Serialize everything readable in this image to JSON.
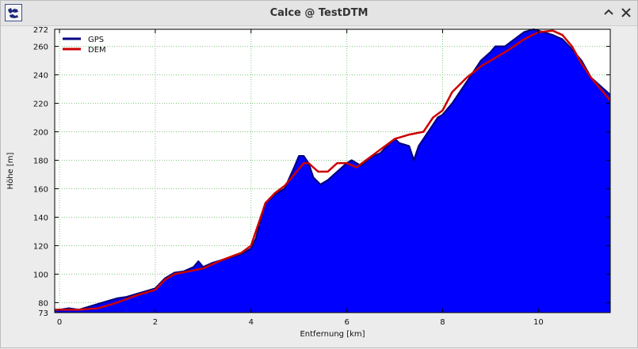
{
  "window": {
    "title": "Calce @ TestDTM",
    "icons": {
      "app": "map-icon",
      "minimize": "chevron-up-icon",
      "close": "close-icon"
    }
  },
  "chart_data": {
    "type": "area",
    "xlabel": "Entfernung [km]",
    "ylabel": "Höhe [m]",
    "xlim": [
      -0.1,
      11.5
    ],
    "ylim": [
      73,
      272
    ],
    "xticks": [
      0,
      2,
      4,
      6,
      8,
      10
    ],
    "yticks": [
      73,
      80,
      100,
      120,
      140,
      160,
      180,
      200,
      220,
      240,
      260,
      272
    ],
    "grid": true,
    "legend_position": "top-left",
    "series": [
      {
        "name": "GPS",
        "color": "#000080",
        "fill": "#0000ff",
        "x": [
          -0.1,
          0,
          0.2,
          0.4,
          0.6,
          0.8,
          1.0,
          1.2,
          1.4,
          1.6,
          1.8,
          2.0,
          2.2,
          2.4,
          2.6,
          2.8,
          2.9,
          3.0,
          3.2,
          3.4,
          3.6,
          3.8,
          4.0,
          4.1,
          4.2,
          4.3,
          4.5,
          4.7,
          4.9,
          5.0,
          5.1,
          5.2,
          5.3,
          5.45,
          5.6,
          5.8,
          6.0,
          6.1,
          6.3,
          6.5,
          6.7,
          6.9,
          7.0,
          7.1,
          7.3,
          7.4,
          7.5,
          7.7,
          7.9,
          8.0,
          8.2,
          8.4,
          8.6,
          8.8,
          9.0,
          9.1,
          9.3,
          9.5,
          9.7,
          9.9,
          10.1,
          10.3,
          10.5,
          10.7,
          10.9,
          11.1,
          11.3,
          11.5
        ],
        "y": [
          75,
          75,
          76,
          75,
          77,
          79,
          81,
          83,
          84,
          86,
          88,
          90,
          97,
          101,
          102,
          105,
          109,
          105,
          108,
          110,
          112,
          114,
          118,
          125,
          138,
          150,
          156,
          160,
          175,
          183,
          183,
          178,
          168,
          163,
          166,
          172,
          178,
          180,
          176,
          182,
          185,
          192,
          195,
          192,
          190,
          180,
          190,
          200,
          210,
          212,
          220,
          230,
          240,
          250,
          256,
          260,
          260,
          265,
          270,
          272,
          270,
          268,
          265,
          258,
          250,
          238,
          232,
          226
        ]
      },
      {
        "name": "DEM",
        "color": "#cc0000",
        "x": [
          -0.1,
          0,
          0.4,
          0.8,
          1.2,
          1.6,
          2.0,
          2.2,
          2.4,
          2.7,
          3.0,
          3.4,
          3.8,
          4.0,
          4.1,
          4.2,
          4.3,
          4.5,
          4.7,
          4.9,
          5.1,
          5.2,
          5.4,
          5.6,
          5.8,
          6.0,
          6.2,
          6.4,
          6.6,
          6.8,
          7.0,
          7.3,
          7.6,
          7.8,
          8.0,
          8.2,
          8.5,
          8.8,
          9.1,
          9.4,
          9.7,
          10.0,
          10.3,
          10.5,
          10.7,
          10.9,
          11.1,
          11.3,
          11.5
        ],
        "y": [
          75,
          75,
          75,
          76,
          80,
          85,
          89,
          96,
          100,
          102,
          104,
          110,
          115,
          120,
          130,
          140,
          150,
          157,
          162,
          170,
          178,
          178,
          172,
          172,
          178,
          178,
          175,
          180,
          185,
          190,
          195,
          198,
          200,
          210,
          215,
          228,
          238,
          246,
          252,
          258,
          265,
          270,
          271,
          268,
          260,
          248,
          238,
          230,
          222
        ]
      }
    ]
  }
}
